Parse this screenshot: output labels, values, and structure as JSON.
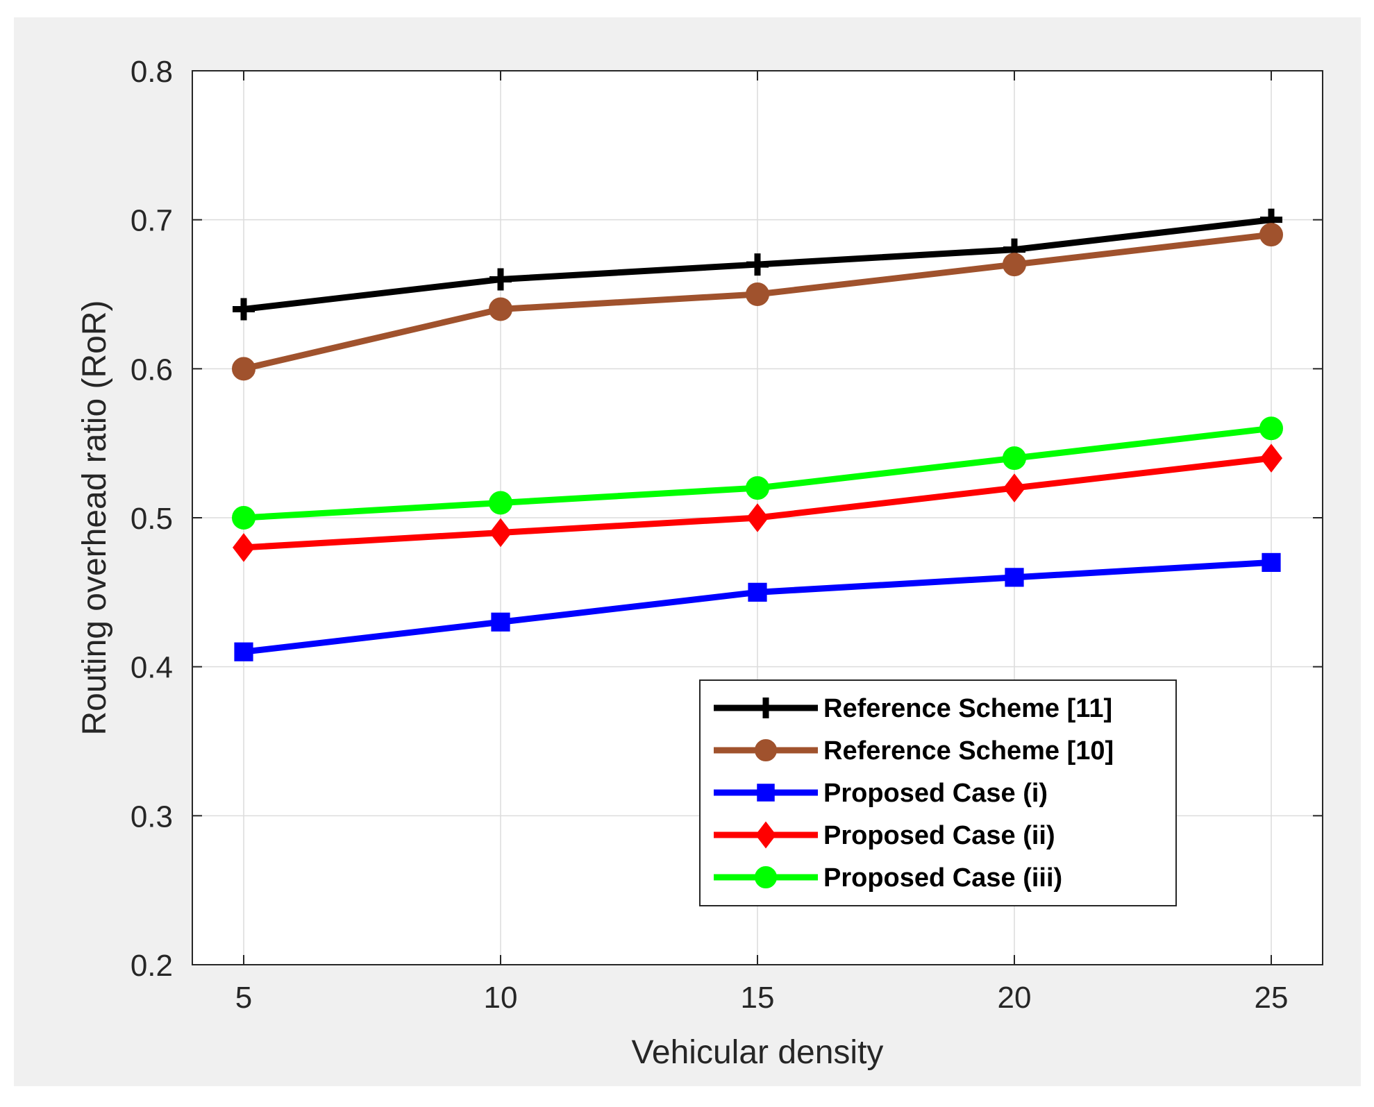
{
  "chart_data": {
    "type": "line",
    "title": "",
    "xlabel": "Vehicular density",
    "ylabel": "Routing overhead ratio (RoR)",
    "x": [
      5,
      10,
      15,
      20,
      25
    ],
    "xticks": [
      "5",
      "10",
      "15",
      "20",
      "25"
    ],
    "yticks": [
      "0.2",
      "0.3",
      "0.4",
      "0.5",
      "0.6",
      "0.7",
      "0.8"
    ],
    "xlim": [
      4,
      26
    ],
    "ylim": [
      0.2,
      0.8
    ],
    "grid": true,
    "legend_position": "bottom-right",
    "series": [
      {
        "name": "Reference Scheme [11]",
        "values": [
          0.64,
          0.66,
          0.67,
          0.68,
          0.7
        ],
        "color": "#000000",
        "marker": "plus"
      },
      {
        "name": "Reference Scheme [10]",
        "values": [
          0.6,
          0.64,
          0.65,
          0.67,
          0.69
        ],
        "color": "#a0522d",
        "marker": "circle"
      },
      {
        "name": "Proposed Case (i)",
        "values": [
          0.41,
          0.43,
          0.45,
          0.46,
          0.47
        ],
        "color": "#0000ff",
        "marker": "square"
      },
      {
        "name": "Proposed Case (ii)",
        "values": [
          0.48,
          0.49,
          0.5,
          0.52,
          0.54
        ],
        "color": "#ff0000",
        "marker": "diamond"
      },
      {
        "name": "Proposed Case (iii)",
        "values": [
          0.5,
          0.51,
          0.52,
          0.54,
          0.56
        ],
        "color": "#00ff00",
        "marker": "circle"
      }
    ]
  }
}
